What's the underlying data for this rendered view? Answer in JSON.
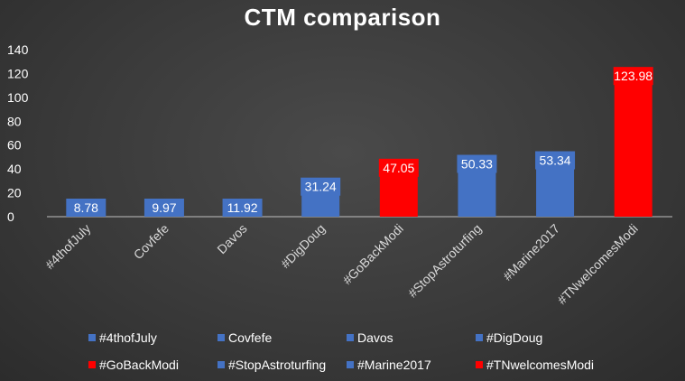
{
  "colors": {
    "blue": "#4472c4",
    "red": "#ff0000",
    "background": "#3a3a3a",
    "grid": "#5a5a5a",
    "text": "#ffffff"
  },
  "chart_data": {
    "type": "bar",
    "title": "CTM comparison",
    "categories": [
      "#4thofJuly",
      "Covfefe",
      "Davos",
      "#DigDoug",
      "#GoBackModi",
      "#StopAstroturfing",
      "#Marine2017",
      "#TNwelcomesModi"
    ],
    "values": [
      8.78,
      9.97,
      11.92,
      31.24,
      47.05,
      50.33,
      53.34,
      123.98
    ],
    "value_labels": [
      "8.78",
      "9.97",
      "11.92",
      "31.24",
      "47.05",
      "50.33",
      "53.34",
      "123.98"
    ],
    "bar_colors": [
      "#4472c4",
      "#4472c4",
      "#4472c4",
      "#4472c4",
      "#ff0000",
      "#4472c4",
      "#4472c4",
      "#ff0000"
    ],
    "ylim": [
      0,
      140
    ],
    "yticks": [
      "0",
      "20",
      "40",
      "60",
      "80",
      "100",
      "120",
      "140"
    ],
    "ytick_values": [
      0,
      20,
      40,
      60,
      80,
      100,
      120,
      140
    ],
    "grid": false,
    "legend_position": "bottom",
    "legend": [
      {
        "label": "#4thofJuly",
        "color": "#4472c4"
      },
      {
        "label": "Covfefe",
        "color": "#4472c4"
      },
      {
        "label": "Davos",
        "color": "#4472c4"
      },
      {
        "label": "#DigDoug",
        "color": "#4472c4"
      },
      {
        "label": "#GoBackModi",
        "color": "#ff0000"
      },
      {
        "label": "#StopAstroturfing",
        "color": "#4472c4"
      },
      {
        "label": "#Marine2017",
        "color": "#4472c4"
      },
      {
        "label": "#TNwelcomesModi",
        "color": "#ff0000"
      }
    ]
  }
}
